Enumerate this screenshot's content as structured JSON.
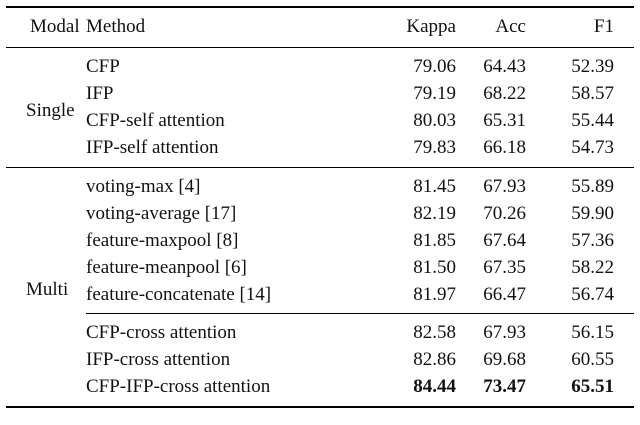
{
  "table": {
    "headers": {
      "modal": "Modal",
      "method": "Method",
      "kappa": "Kappa",
      "acc": "Acc",
      "f1": "F1"
    },
    "single": {
      "label": "Single",
      "rows": [
        {
          "method": "CFP",
          "kappa": "79.06",
          "acc": "64.43",
          "f1": "52.39"
        },
        {
          "method": "IFP",
          "kappa": "79.19",
          "acc": "68.22",
          "f1": "58.57"
        },
        {
          "method": "CFP-self attention",
          "kappa": "80.03",
          "acc": "65.31",
          "f1": "55.44"
        },
        {
          "method": "IFP-self attention",
          "kappa": "79.83",
          "acc": "66.18",
          "f1": "54.73"
        }
      ]
    },
    "multi": {
      "label": "Multi",
      "rows": [
        {
          "method": "voting-max [4]",
          "kappa": "81.45",
          "acc": "67.93",
          "f1": "55.89"
        },
        {
          "method": "voting-average [17]",
          "kappa": "82.19",
          "acc": "70.26",
          "f1": "59.90"
        },
        {
          "method": "feature-maxpool [8]",
          "kappa": "81.85",
          "acc": "67.64",
          "f1": "57.36"
        },
        {
          "method": "feature-meanpool [6]",
          "kappa": "81.50",
          "acc": "67.35",
          "f1": "58.22"
        },
        {
          "method": "feature-concatenate [14]",
          "kappa": "81.97",
          "acc": "66.47",
          "f1": "56.74"
        },
        {
          "method": "CFP-cross attention",
          "kappa": "82.58",
          "acc": "67.93",
          "f1": "56.15"
        },
        {
          "method": "IFP-cross attention",
          "kappa": "82.86",
          "acc": "69.68",
          "f1": "60.55"
        },
        {
          "method": "CFP-IFP-cross attention",
          "kappa": "84.44",
          "acc": "73.47",
          "f1": "65.51"
        }
      ]
    }
  },
  "chart_data": {
    "type": "table",
    "columns": [
      "Modal",
      "Method",
      "Kappa",
      "Acc",
      "F1"
    ],
    "rows": [
      [
        "Single",
        "CFP",
        79.06,
        64.43,
        52.39
      ],
      [
        "Single",
        "IFP",
        79.19,
        68.22,
        58.57
      ],
      [
        "Single",
        "CFP-self attention",
        80.03,
        65.31,
        55.44
      ],
      [
        "Single",
        "IFP-self attention",
        79.83,
        66.18,
        54.73
      ],
      [
        "Multi",
        "voting-max [4]",
        81.45,
        67.93,
        55.89
      ],
      [
        "Multi",
        "voting-average [17]",
        82.19,
        70.26,
        59.9
      ],
      [
        "Multi",
        "feature-maxpool [8]",
        81.85,
        67.64,
        57.36
      ],
      [
        "Multi",
        "feature-meanpool [6]",
        81.5,
        67.35,
        58.22
      ],
      [
        "Multi",
        "feature-concatenate [14]",
        81.97,
        66.47,
        56.74
      ],
      [
        "Multi",
        "CFP-cross attention",
        82.58,
        67.93,
        56.15
      ],
      [
        "Multi",
        "IFP-cross attention",
        82.86,
        69.68,
        60.55
      ],
      [
        "Multi",
        "CFP-IFP-cross attention",
        84.44,
        73.47,
        65.51
      ]
    ],
    "bold_best_row": "CFP-IFP-cross attention"
  }
}
